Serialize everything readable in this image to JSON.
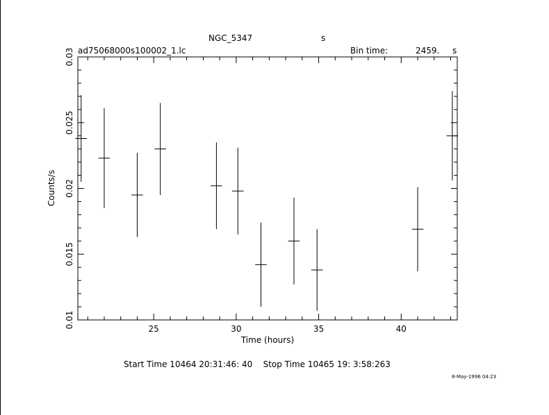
{
  "chart_data": {
    "type": "scatter",
    "title": "NGC_5347",
    "title_unit": "s",
    "filename": "ad75068000s100002_1.lc",
    "bin_time_label": "Bin time:",
    "bin_time_value": "2459.",
    "bin_time_unit": "s",
    "xlabel": "Time (hours)",
    "ylabel": "Counts/s",
    "xlim": [
      20.4,
      43.4
    ],
    "ylim": [
      0.01,
      0.03
    ],
    "x_ticks": [
      25,
      30,
      35,
      40
    ],
    "x_tick_labels": [
      "25",
      "30",
      "35",
      "40"
    ],
    "y_ticks": [
      0.01,
      0.015,
      0.02,
      0.025,
      0.03
    ],
    "y_tick_labels": [
      "0.01",
      "0.015",
      "0.02",
      "0.025",
      "0.03"
    ],
    "points": [
      {
        "x": 20.6,
        "y": 0.0238,
        "xerr": 0.35,
        "yerr": 0.0033
      },
      {
        "x": 22.0,
        "y": 0.0223,
        "xerr": 0.35,
        "yerr": 0.0038
      },
      {
        "x": 24.0,
        "y": 0.0195,
        "xerr": 0.35,
        "yerr": 0.0032
      },
      {
        "x": 25.4,
        "y": 0.023,
        "xerr": 0.35,
        "yerr": 0.0035
      },
      {
        "x": 28.8,
        "y": 0.0202,
        "xerr": 0.35,
        "yerr": 0.0033
      },
      {
        "x": 30.1,
        "y": 0.0198,
        "xerr": 0.35,
        "yerr": 0.0033
      },
      {
        "x": 31.5,
        "y": 0.0142,
        "xerr": 0.35,
        "yerr": 0.0032
      },
      {
        "x": 33.5,
        "y": 0.016,
        "xerr": 0.35,
        "yerr": 0.0033
      },
      {
        "x": 34.9,
        "y": 0.0138,
        "xerr": 0.35,
        "yerr": 0.0031
      },
      {
        "x": 41.0,
        "y": 0.0169,
        "xerr": 0.35,
        "yerr": 0.0032
      },
      {
        "x": 43.1,
        "y": 0.024,
        "xerr": 0.35,
        "yerr": 0.0034
      }
    ]
  },
  "footer": {
    "time_range": "Start Time 10464 20:31:46: 40    Stop Time 10465 19: 3:58:263",
    "date_stamp": "8-May-1996 04:23"
  }
}
